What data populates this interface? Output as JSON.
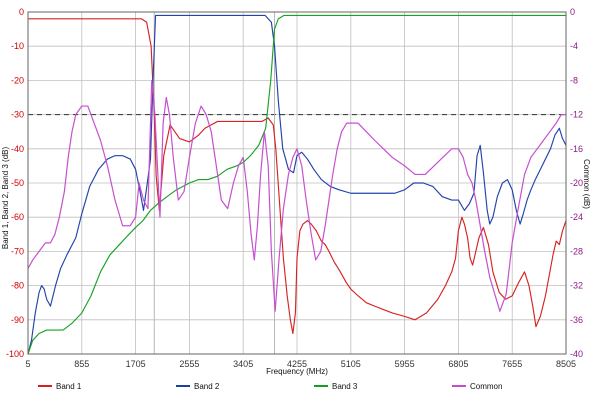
{
  "chart_data": {
    "type": "line",
    "title": "",
    "xlabel": "Frequency (MHz)",
    "ylabel_left": "Band 1, Band 2, Band 3 (dB)",
    "ylabel_right": "Common (dB)",
    "xlim": [
      5,
      8505
    ],
    "ylim_left": [
      -100,
      0
    ],
    "ylim_right": [
      -40,
      0
    ],
    "x_ticks": [
      5,
      855,
      1705,
      2555,
      3405,
      4255,
      5105,
      5955,
      6805,
      7655,
      8505
    ],
    "left_ticks": [
      0,
      -10,
      -20,
      -30,
      -40,
      -50,
      -60,
      -70,
      -80,
      -90,
      -100
    ],
    "right_ticks": [
      0,
      -4,
      -8,
      -12,
      -16,
      -20,
      -24,
      -28,
      -32,
      -36,
      -40
    ],
    "x_tick_labels": [
      "5",
      "855",
      "1705",
      "2555",
      "3405",
      "4255",
      "5105",
      "5955",
      "6805",
      "7655",
      "8505"
    ],
    "left_tick_labels": [
      "0",
      "-10",
      "-20",
      "-30",
      "-40",
      "-50",
      "-60",
      "-70",
      "-80",
      "-90",
      "-100"
    ],
    "right_tick_labels": [
      "0",
      "-4",
      "-8",
      "-12",
      "-16",
      "-20",
      "-24",
      "-28",
      "-32",
      "-36",
      "-40"
    ],
    "grid": true,
    "reference_line_db": -30,
    "vertical_markers": [
      2000,
      3900
    ],
    "legend": [
      {
        "name": "Band 1",
        "color": "#d61f1f"
      },
      {
        "name": "Band 2",
        "color": "#1e3fa8"
      },
      {
        "name": "Band 3",
        "color": "#14a01f"
      },
      {
        "name": "Common",
        "color": "#c54ccf"
      }
    ],
    "series": [
      {
        "name": "Band 1",
        "axis": "left",
        "color": "#d61f1f",
        "x": [
          5,
          20,
          60,
          120,
          190,
          260,
          330,
          420,
          520,
          650,
          760,
          855,
          980,
          1120,
          1260,
          1390,
          1500,
          1620,
          1705,
          1800,
          1880,
          1950,
          2000,
          2030,
          2080,
          2150,
          2250,
          2400,
          2555,
          2700,
          2800,
          2900,
          3000,
          3100,
          3250,
          3405,
          3550,
          3700,
          3800,
          3880,
          3920,
          3980,
          4040,
          4100,
          4150,
          4190,
          4230,
          4255,
          4300,
          4350,
          4420,
          4480,
          4560,
          4640,
          4700,
          4760,
          4840,
          4940,
          5030,
          5105,
          5220,
          5350,
          5480,
          5620,
          5760,
          5955,
          6120,
          6300,
          6480,
          6600,
          6700,
          6760,
          6805,
          6860,
          6900,
          6950,
          6990,
          7030,
          7080,
          7130,
          7200,
          7280,
          7350,
          7450,
          7550,
          7655,
          7760,
          7850,
          7920,
          7980,
          8030,
          8100,
          8180,
          8250,
          8300,
          8350,
          8400,
          8450,
          8505
        ],
        "y": [
          -2,
          -2,
          -2,
          -2,
          -2,
          -2,
          -2,
          -2,
          -2,
          -2,
          -2,
          -2,
          -2,
          -2,
          -2,
          -2,
          -2,
          -2,
          -2,
          -2,
          -3,
          -10,
          -30,
          -48,
          -58,
          -42,
          -33,
          -37,
          -38,
          -36,
          -34,
          -33,
          -32,
          -32,
          -32,
          -32,
          -32,
          -32,
          -31,
          -33,
          -40,
          -56,
          -72,
          -83,
          -90,
          -94,
          -88,
          -72,
          -64,
          -62,
          -61,
          -62,
          -64,
          -67,
          -68,
          -70,
          -73,
          -76,
          -79,
          -81,
          -83,
          -85,
          -86,
          -87,
          -88,
          -89,
          -90,
          -88,
          -84,
          -80,
          -76,
          -72,
          -64,
          -60,
          -62,
          -66,
          -72,
          -74,
          -70,
          -66,
          -63,
          -68,
          -76,
          -82,
          -84,
          -83,
          -79,
          -76,
          -80,
          -86,
          -92,
          -89,
          -83,
          -76,
          -71,
          -67,
          -68,
          -64,
          -61
        ]
      },
      {
        "name": "Band 2",
        "axis": "left",
        "color": "#1e3fa8",
        "x": [
          5,
          60,
          120,
          180,
          220,
          260,
          300,
          360,
          440,
          520,
          620,
          760,
          855,
          980,
          1120,
          1260,
          1380,
          1500,
          1620,
          1705,
          1770,
          1830,
          1890,
          1940,
          1980,
          2020,
          2060,
          2100,
          2200,
          2400,
          2555,
          2800,
          3000,
          3200,
          3405,
          3600,
          3750,
          3850,
          3900,
          3960,
          4030,
          4120,
          4200,
          4255,
          4330,
          4420,
          4520,
          4640,
          4780,
          4920,
          5105,
          5260,
          5420,
          5600,
          5800,
          5955,
          6100,
          6250,
          6400,
          6550,
          6700,
          6805,
          6900,
          6980,
          7050,
          7100,
          7150,
          7200,
          7260,
          7300,
          7350,
          7420,
          7500,
          7580,
          7655,
          7720,
          7780,
          7830,
          7890,
          7950,
          8020,
          8100,
          8180,
          8260,
          8330,
          8400,
          8450,
          8505
        ],
        "y": [
          -100,
          -96,
          -88,
          -82,
          -80,
          -81,
          -84,
          -86,
          -80,
          -75,
          -71,
          -66,
          -59,
          -51,
          -46,
          -43,
          -42,
          -42,
          -43,
          -46,
          -52,
          -58,
          -50,
          -43,
          -20,
          -1,
          -1,
          -1,
          -1,
          -1,
          -1,
          -1,
          -1,
          -1,
          -1,
          -1,
          -1,
          -3,
          -10,
          -26,
          -40,
          -46,
          -47,
          -42,
          -41,
          -43,
          -46,
          -49,
          -51,
          -52,
          -53,
          -53,
          -53,
          -53,
          -53,
          -52,
          -50,
          -50,
          -51,
          -54,
          -55,
          -55,
          -58,
          -56,
          -53,
          -42,
          -39,
          -47,
          -58,
          -62,
          -60,
          -54,
          -50,
          -49,
          -52,
          -58,
          -62,
          -59,
          -55,
          -52,
          -49,
          -46,
          -43,
          -40,
          -36,
          -34,
          -37,
          -39
        ]
      },
      {
        "name": "Band 3",
        "axis": "left",
        "color": "#14a01f",
        "x": [
          5,
          80,
          180,
          300,
          430,
          560,
          700,
          855,
          1000,
          1150,
          1300,
          1450,
          1600,
          1705,
          1820,
          1940,
          2060,
          2200,
          2350,
          2555,
          2700,
          2850,
          3000,
          3150,
          3300,
          3405,
          3520,
          3650,
          3760,
          3840,
          3900,
          3960,
          4050,
          4255,
          4600,
          5105,
          5955,
          6805,
          7655,
          8505
        ],
        "y": [
          -100,
          -96,
          -94,
          -93,
          -93,
          -93,
          -91,
          -88,
          -83,
          -76,
          -71,
          -68,
          -65,
          -63,
          -61,
          -58,
          -56,
          -54,
          -52,
          -50,
          -49,
          -49,
          -48,
          -46,
          -45,
          -44,
          -42,
          -39,
          -34,
          -20,
          -5,
          -2,
          -1,
          -1,
          -1,
          -1,
          -1,
          -1,
          -1,
          -1
        ]
      },
      {
        "name": "Common",
        "axis": "right",
        "color": "#c54ccf",
        "x": [
          5,
          80,
          180,
          280,
          360,
          430,
          500,
          580,
          640,
          700,
          760,
          855,
          950,
          1050,
          1150,
          1260,
          1380,
          1500,
          1620,
          1705,
          1760,
          1830,
          1900,
          1960,
          2010,
          2050,
          2090,
          2140,
          2190,
          2240,
          2300,
          2380,
          2470,
          2555,
          2650,
          2740,
          2820,
          2900,
          2980,
          3060,
          3160,
          3250,
          3330,
          3405,
          3470,
          3530,
          3580,
          3630,
          3680,
          3740,
          3800,
          3850,
          3910,
          3970,
          4040,
          4120,
          4190,
          4255,
          4330,
          4400,
          4480,
          4550,
          4630,
          4700,
          4760,
          4820,
          4890,
          4960,
          5040,
          5105,
          5220,
          5350,
          5480,
          5620,
          5760,
          5955,
          6120,
          6280,
          6420,
          6560,
          6700,
          6805,
          6880,
          6950,
          7020,
          7080,
          7150,
          7220,
          7300,
          7380,
          7460,
          7560,
          7655,
          7750,
          7850,
          7950,
          8050,
          8150,
          8250,
          8350,
          8430,
          8505
        ],
        "y": [
          -30,
          -29,
          -28,
          -27,
          -27,
          -26,
          -24,
          -21,
          -17,
          -14,
          -12,
          -11,
          -11,
          -13,
          -15,
          -18,
          -22,
          -25,
          -25,
          -24,
          -20,
          -22,
          -23,
          -8,
          -12,
          -18,
          -24,
          -13,
          -10,
          -12,
          -17,
          -22,
          -21,
          -17,
          -13,
          -11,
          -12,
          -14,
          -18,
          -22,
          -23,
          -20,
          -18,
          -17,
          -21,
          -26,
          -29,
          -25,
          -19,
          -14,
          -18,
          -28,
          -35,
          -29,
          -23,
          -19,
          -17,
          -16,
          -18,
          -22,
          -26,
          -29,
          -28,
          -25,
          -22,
          -19,
          -16,
          -14,
          -13,
          -13,
          -13,
          -14,
          -15,
          -16,
          -17,
          -18,
          -19,
          -19,
          -18,
          -17,
          -16,
          -16,
          -17,
          -19,
          -20,
          -22,
          -25,
          -28,
          -31,
          -33,
          -35,
          -33,
          -27,
          -23,
          -19,
          -17,
          -16,
          -15,
          -14,
          -13,
          -12,
          -12
        ]
      }
    ]
  }
}
